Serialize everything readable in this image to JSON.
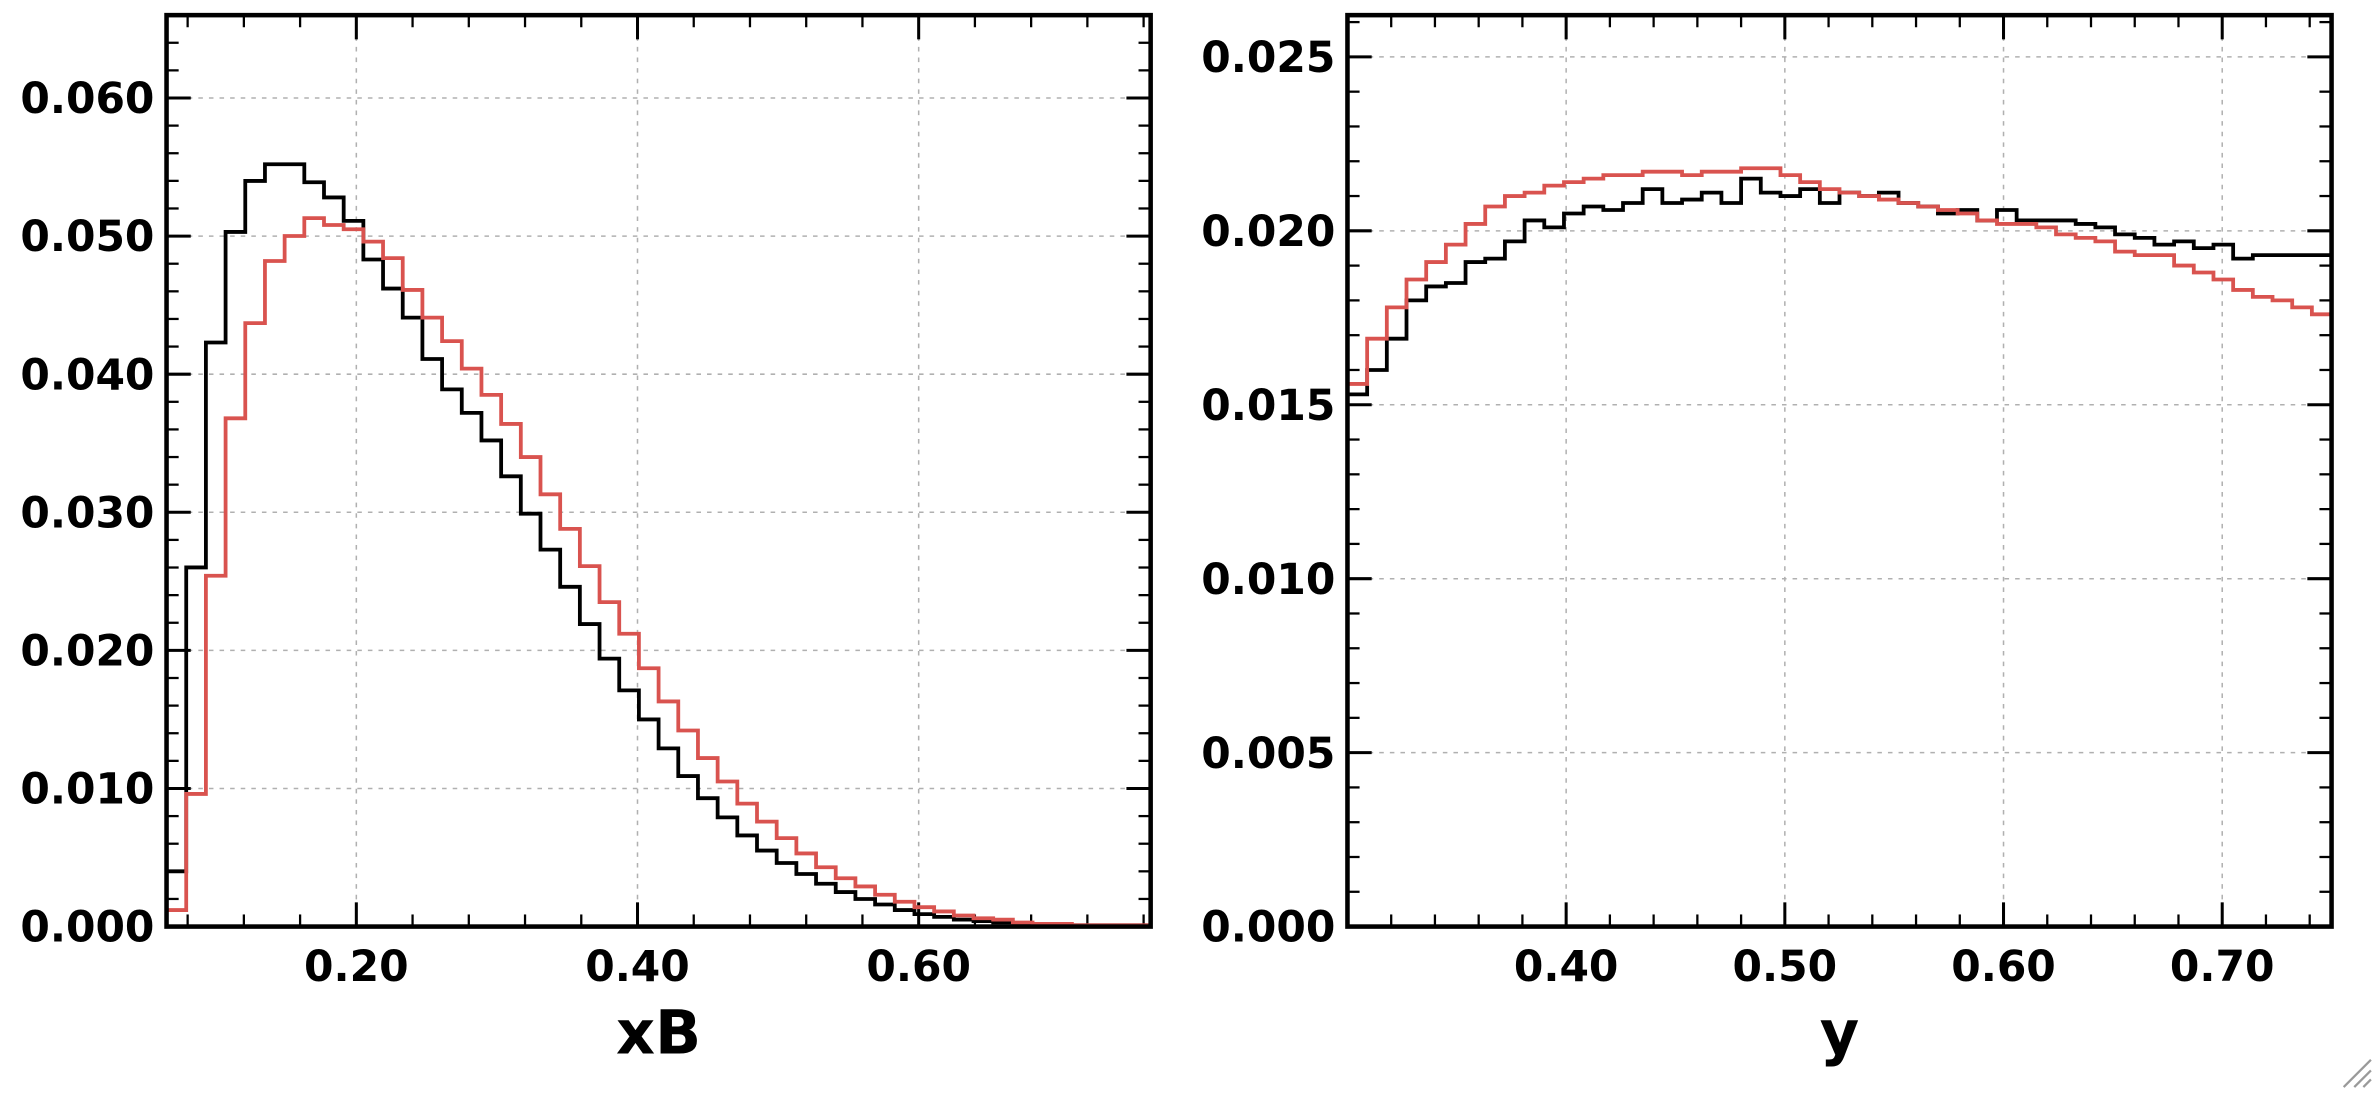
{
  "colors": {
    "black_series": "#000000",
    "red_series": "#d9534f"
  },
  "chart_data": [
    {
      "type": "step",
      "xlabel": "xB",
      "xlim": [
        0.065,
        0.765
      ],
      "ylim": [
        0,
        0.066
      ],
      "x_ticks": [
        0.2,
        0.4,
        0.6
      ],
      "x_tick_labels": [
        "0.20",
        "0.40",
        "0.60"
      ],
      "y_ticks": [
        0.0,
        0.01,
        0.02,
        0.03,
        0.04,
        0.05,
        0.06
      ],
      "y_tick_labels": [
        "0.000",
        "0.010",
        "0.020",
        "0.030",
        "0.040",
        "0.050",
        "0.060"
      ],
      "grid": true,
      "bin_start": 0.065,
      "bin_width": 0.014,
      "series": [
        {
          "color": "black",
          "values": [
            0.004,
            0.026,
            0.0423,
            0.0503,
            0.054,
            0.0552,
            0.0552,
            0.0539,
            0.0528,
            0.0511,
            0.0483,
            0.0462,
            0.0441,
            0.0411,
            0.0389,
            0.0372,
            0.0352,
            0.0326,
            0.0299,
            0.0273,
            0.0246,
            0.0219,
            0.0194,
            0.0171,
            0.015,
            0.0129,
            0.0109,
            0.0093,
            0.0079,
            0.0066,
            0.0055,
            0.0046,
            0.0038,
            0.0031,
            0.0025,
            0.002,
            0.0016,
            0.0012,
            0.0009,
            0.0007,
            0.0005,
            0.0004,
            0.0003,
            0.0002,
            0.0002,
            0.0001,
            0.0001,
            0.0001,
            0.0001,
            0.0001
          ]
        },
        {
          "color": "red",
          "values": [
            0.0012,
            0.0096,
            0.0254,
            0.0368,
            0.0437,
            0.0482,
            0.05,
            0.0513,
            0.0508,
            0.0505,
            0.0496,
            0.0484,
            0.0461,
            0.0441,
            0.0424,
            0.0404,
            0.0385,
            0.0364,
            0.034,
            0.0313,
            0.0288,
            0.0261,
            0.0235,
            0.0212,
            0.0187,
            0.0163,
            0.0142,
            0.0122,
            0.0105,
            0.0089,
            0.0076,
            0.0064,
            0.0053,
            0.0043,
            0.0035,
            0.0029,
            0.0023,
            0.0018,
            0.0014,
            0.0011,
            0.0008,
            0.0006,
            0.0005,
            0.0003,
            0.0002,
            0.0002,
            0.0001,
            0.0001,
            0.0001,
            0.0001
          ]
        }
      ]
    },
    {
      "type": "step",
      "xlabel": "y",
      "xlim": [
        0.3,
        0.75
      ],
      "ylim": [
        0,
        0.0262
      ],
      "x_ticks": [
        0.4,
        0.5,
        0.6,
        0.7
      ],
      "x_tick_labels": [
        "0.40",
        "0.50",
        "0.60",
        "0.70"
      ],
      "y_ticks": [
        0.0,
        0.005,
        0.01,
        0.015,
        0.02,
        0.025
      ],
      "y_tick_labels": [
        "0.000",
        "0.005",
        "0.010",
        "0.015",
        "0.020",
        "0.025"
      ],
      "grid": true,
      "bin_start": 0.3,
      "bin_width": 0.009,
      "series": [
        {
          "color": "black",
          "values": [
            0.0153,
            0.016,
            0.0169,
            0.018,
            0.0184,
            0.0185,
            0.0191,
            0.0192,
            0.0197,
            0.0203,
            0.0201,
            0.0205,
            0.0207,
            0.0206,
            0.0208,
            0.0212,
            0.0208,
            0.0209,
            0.0211,
            0.0208,
            0.0215,
            0.0211,
            0.021,
            0.0212,
            0.0208,
            0.0211,
            0.021,
            0.0211,
            0.0208,
            0.0207,
            0.0205,
            0.0206,
            0.0203,
            0.0206,
            0.0203,
            0.0203,
            0.0203,
            0.0202,
            0.0201,
            0.0199,
            0.0198,
            0.0196,
            0.0197,
            0.0195,
            0.0196,
            0.0192,
            0.0193,
            0.0193,
            0.0193,
            0.0193
          ]
        },
        {
          "color": "red",
          "values": [
            0.0156,
            0.0169,
            0.0178,
            0.0186,
            0.0191,
            0.0196,
            0.0202,
            0.0207,
            0.021,
            0.0211,
            0.0213,
            0.0214,
            0.0215,
            0.0216,
            0.0216,
            0.0217,
            0.0217,
            0.0216,
            0.0217,
            0.0217,
            0.0218,
            0.0218,
            0.0216,
            0.0214,
            0.0212,
            0.0211,
            0.021,
            0.0209,
            0.0208,
            0.0207,
            0.0206,
            0.0205,
            0.0203,
            0.0202,
            0.0202,
            0.0201,
            0.0199,
            0.0198,
            0.0197,
            0.0194,
            0.0193,
            0.0193,
            0.019,
            0.0188,
            0.0186,
            0.0183,
            0.0181,
            0.018,
            0.0178,
            0.0176
          ]
        }
      ]
    }
  ]
}
